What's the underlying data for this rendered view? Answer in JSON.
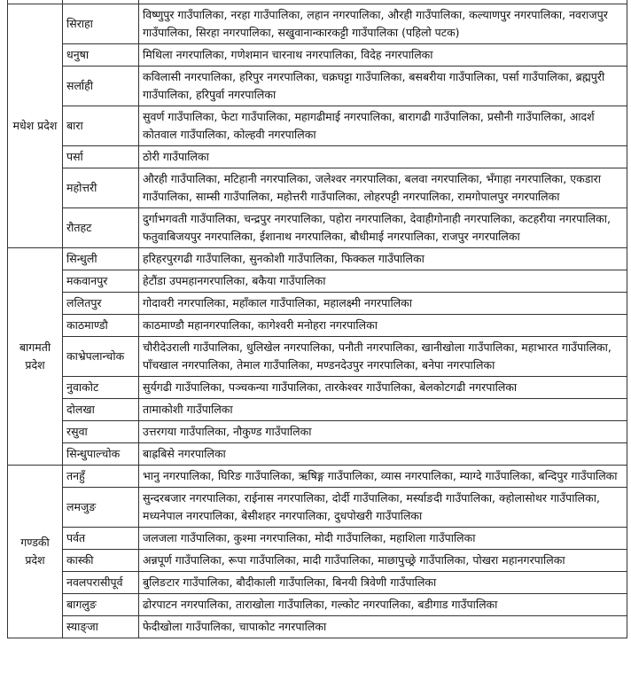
{
  "provinces": [
    {
      "name": "मधेश प्रदेश",
      "districts": [
        {
          "name": "सिराहा",
          "municipalities": "विष्णुपुर गाउँपालिका, नरहा गाउँपालिका, लहान नगरपालिका, औरही गाउँपालिका, कल्याणपुर नगरपालिका, नवराजपुर गाउँपालिका, सिरहा नगरपालिका, सखुवानान्कारकट्टी गाउँपालिका (पहिलो पटक)"
        },
        {
          "name": "धनुषा",
          "municipalities": "मिथिला नगरपालिका, गणेशमान चारनाथ नगरपालिका, विदेह नगरपालिका"
        },
        {
          "name": "सर्लाही",
          "municipalities": "कविलासी नगरपालिका, हरिपुर नगरपालिका, चक्रघट्टा गाउँपालिका, बसबरीया गाउँपालिका, पर्सा गाउँपालिका, ब्रह्मपुरी गाउँपालिका, हरिपुर्वा नगरपालिका"
        },
        {
          "name": "बारा",
          "municipalities": "सुवर्ण गाउँपालिका, फेटा गाउँपालिका, महागढीमाई नगरपालिका, बारागढी गाउँपालिका, प्रसौनी गाउँपालिका, आदर्श कोतवाल गाउँपालिका, कोल्हवी नगरपालिका"
        },
        {
          "name": "पर्सा",
          "municipalities": "ठोरी गाउँपालिका"
        },
        {
          "name": "महोत्तरी",
          "municipalities": "औरही गाउँपालिका, मटिहानी नगरपालिका, जलेश्वर नगरपालिका, बलवा नगरपालिका, भँगाहा नगरपालिका, एकडारा गाउँपालिका, साम्सी गाउँपालिका, महोत्तरी गाउँपालिका, लोहरपट्टी नगरपालिका, रामगोपालपुर नगरपालिका"
        },
        {
          "name": "रौतहट",
          "municipalities": "दुर्गाभगवती गाउँपालिका, चन्द्रपुर नगरपालिका, पहोरा नगरपालिका, देवाहीगोनाही नगरपालिका, कटहरीया नगरपालिका, फतुवाबिजयपुर नगरपालिका, ईशानाथ नगरपालिका, बौधीमाई नगरपालिका, राजपुर नगरपालिका"
        }
      ]
    },
    {
      "name": "बागमती प्रदेश",
      "districts": [
        {
          "name": "सिन्धुली",
          "municipalities": "हरिहरपुरगढी गाउँपालिका, सुनकोशी गाउँपालिका, फिक्कल गाउँपालिका"
        },
        {
          "name": "मकवानपुर",
          "municipalities": "हेटौंडा उपमहानगरपालिका, बकैया गाउँपालिका"
        },
        {
          "name": "ललितपुर",
          "municipalities": "गोदावरी नगरपालिका, महाँकाल गाउँपालिका, महालक्ष्मी नगरपालिका"
        },
        {
          "name": "काठमाण्डौ",
          "municipalities": "काठमाण्डौ महानगरपालिका, कागेश्वरी मनोहरा नगरपालिका"
        },
        {
          "name": "काभ्रेपलान्चोक",
          "municipalities": "चौरीदेउराली गाउँपालिका, धुलिखेल नगरपालिका, पनौती नगरपालिका, खानीखोला गाउँपालिका, महाभारत गाउँपालिका, पाँचखाल नगरपालिका, तेमाल गाउँपालिका, मण्डनदेउपुर नगरपालिका, बनेपा नगरपालिका"
        },
        {
          "name": "नुवाकोट",
          "municipalities": "सुर्यगढी गाउँपालिका, पञ्चकन्या गाउँपालिका, तारकेश्वर गाउँपालिका, बेलकोटगढी नगरपालिका"
        },
        {
          "name": "दोलखा",
          "municipalities": "तामाकोशी गाउँपालिका"
        },
        {
          "name": "रसुवा",
          "municipalities": "उत्तरगया गाउँपालिका, नौकुण्ड गाउँपालिका"
        },
        {
          "name": "सिन्धुपाल्चोक",
          "municipalities": "बाह्रबिसे नगरपालिका"
        }
      ]
    },
    {
      "name": "गण्डकी प्रदेश",
      "districts": [
        {
          "name": "तनहुँ",
          "municipalities": "भानु नगरपालिका, घिरिङ गाउँपालिका, ऋषिङ्ग गाउँपालिका, व्यास नगरपालिका, म्याग्दे गाउँपालिका, बन्दिपुर गाउँपालिका"
        },
        {
          "name": "लमजुङ",
          "municipalities": "सुन्दरबजार नगरपालिका, राईनास नगरपालिका, दोर्दी गाउँपालिका, मर्स्याङदी गाउँपालिका, क्होलासोथर गाउँपालिका, मध्यनेपाल नगरपालिका, बेसीशहर नगरपालिका, दुधपोखरी गाउँपालिका"
        },
        {
          "name": "पर्वत",
          "municipalities": "जलजला गाउँपालिका, कुश्मा नगरपालिका, मोदी गाउँपालिका, महाशिला गाउँपालिका"
        },
        {
          "name": "कास्की",
          "municipalities": "अन्नपूर्ण गाउँपालिका, रूपा गाउँपालिका, मादी गाउँपालिका, माछापुच्छ्रे गाउँपालिका, पोखरा महानगरपालिका"
        },
        {
          "name": "नवलपरासीपूर्व",
          "municipalities": "बुलिङटार गाउँपालिका, बौदीकाली गाउँपालिका, बिनयी त्रिवेणी गाउँपालिका"
        },
        {
          "name": "बागलुङ",
          "municipalities": "ढोरपाटन नगरपालिका, ताराखोला गाउँपालिका, गल्कोट नगरपालिका, बडीगाड गाउँपालिका"
        },
        {
          "name": "स्याङ्जा",
          "municipalities": "फेदीखोला गाउँपालिका, चापाकोट नगरपालिका"
        }
      ]
    }
  ]
}
